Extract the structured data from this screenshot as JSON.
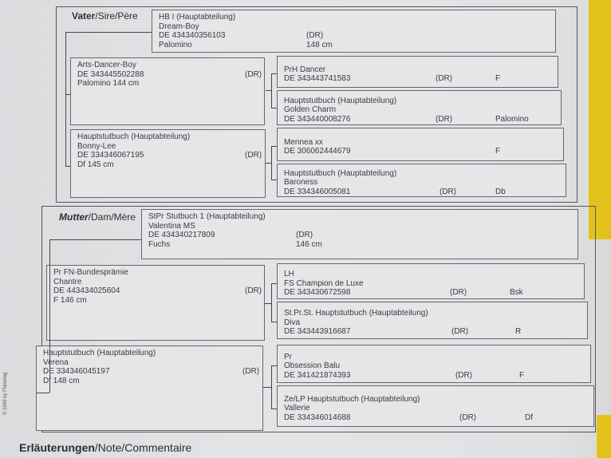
{
  "sire_section": {
    "title_bold": "Vater",
    "title_rest": "/Sire/Père"
  },
  "dam_section": {
    "title_bold": "Mutter",
    "title_rest": "/Dam/Mère"
  },
  "horses": [
    {
      "role": "sire",
      "lines": [
        {
          "t": "HB I (Hauptabteilung)"
        },
        {
          "t": "Dream-Boy"
        },
        {
          "t": "DE 434340356103",
          "dr": "(DR)"
        },
        {
          "t": "Palomino",
          "dr": "148 cm"
        }
      ]
    },
    {
      "role": "sire-sire",
      "lines": [
        {
          "t": "Arts-Dancer-Boy"
        },
        {
          "t": "DE 343445502288",
          "dr": "(DR)"
        },
        {
          "t": "Palomino   144 cm"
        }
      ]
    },
    {
      "role": "sire-dam",
      "lines": [
        {
          "t": "Hauptstutbuch (Hauptabteilung)"
        },
        {
          "t": "Bonny-Lee"
        },
        {
          "t": "DE 334346067195",
          "dr": "(DR)"
        },
        {
          "t": "Df   145 cm"
        }
      ]
    },
    {
      "role": "sire-sire-sire",
      "lines": [
        {
          "t": "PrH Dancer"
        },
        {
          "t": "DE 343443741583",
          "dr": "(DR)",
          "ex": "F"
        }
      ]
    },
    {
      "role": "sire-sire-dam",
      "lines": [
        {
          "t": "Hauptstutbuch (Hauptabteilung)"
        },
        {
          "t": "Golden Charm"
        },
        {
          "t": "DE 343440008276",
          "dr": "(DR)",
          "ex": "Palomino"
        }
      ]
    },
    {
      "role": "sire-dam-sire",
      "lines": [
        {
          "t": "Mennea   xx"
        },
        {
          "t": "DE 306062444679",
          "ex": "F"
        }
      ]
    },
    {
      "role": "sire-dam-dam",
      "lines": [
        {
          "t": "Hauptstutbuch (Hauptabteilung)"
        },
        {
          "t": "Baroness"
        },
        {
          "t": "DE 334346005081",
          "dr": "(DR)",
          "ex": "Db"
        }
      ]
    },
    {
      "role": "dam",
      "lines": [
        {
          "t": "StPr   Stutbuch 1 (Hauptabteilung)"
        },
        {
          "t": "Valentina MS"
        },
        {
          "t": "DE 434340217809",
          "dr": "(DR)"
        },
        {
          "t": "Fuchs",
          "dr": "146 cm"
        }
      ]
    },
    {
      "role": "dam-sire",
      "lines": [
        {
          "t": "Pr   FN-Bundesprämie"
        },
        {
          "t": "Chantre"
        },
        {
          "t": "DE 443434025604",
          "dr": "(DR)"
        },
        {
          "t": "F   146 cm"
        }
      ]
    },
    {
      "role": "dam-dam",
      "lines": [
        {
          "t": "Hauptstutbuch (Hauptabteilung)"
        },
        {
          "t": "Verena"
        },
        {
          "t": "DE 334346045197",
          "dr": "(DR)"
        },
        {
          "t": "Df   148 cm"
        }
      ]
    },
    {
      "role": "dam-sire-sire",
      "lines": [
        {
          "t": "LH"
        },
        {
          "t": "FS Champion de Luxe"
        },
        {
          "t": "DE 343430672598",
          "dr": "(DR)",
          "ex": "Bsk"
        }
      ]
    },
    {
      "role": "dam-sire-dam",
      "lines": [
        {
          "t": "St.Pr.St.   Hauptstutbuch (Hauptabteilung)"
        },
        {
          "t": "Diva"
        },
        {
          "t": "DE 343443916687",
          "dr": "(DR)",
          "ex": "R"
        }
      ]
    },
    {
      "role": "dam-dam-sire",
      "lines": [
        {
          "t": "Pr"
        },
        {
          "t": "Obsession Balu"
        },
        {
          "t": "DE 341421874393",
          "dr": "(DR)",
          "ex": "F"
        }
      ]
    },
    {
      "role": "dam-dam-dam",
      "lines": [
        {
          "t": "Ze/LP   Hauptstutbuch (Hauptabteilung)"
        },
        {
          "t": "Vallerie"
        },
        {
          "t": "DE 334346014688",
          "dr": "(DR)",
          "ex": "Df"
        }
      ]
    }
  ],
  "copyright": "© 1999 by FNverlag",
  "footer": {
    "bold": "Erläuterungen",
    "rest": "/Note/Commentaire"
  },
  "colors": {
    "paper": "#e4e4e7",
    "ink": "#3a3a40",
    "folder": "#e2c21a"
  }
}
